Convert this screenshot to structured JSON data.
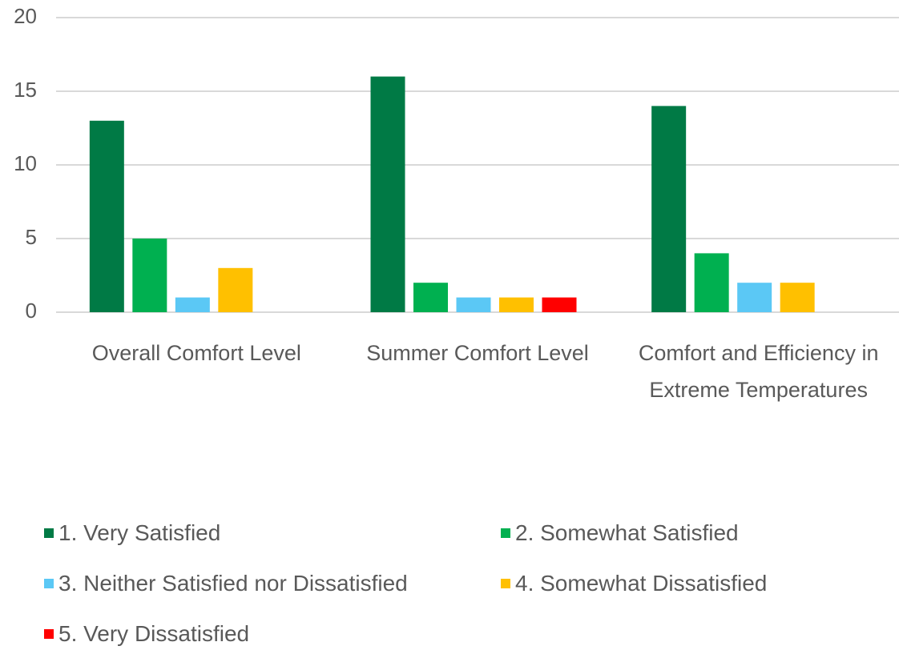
{
  "chart_data": {
    "type": "bar",
    "categories": [
      "Overall Comfort Level",
      "Summer Comfort Level",
      "Comfort and Efficiency in Extreme Temperatures"
    ],
    "series": [
      {
        "name": "1. Very Satisfied",
        "color": "#007a45",
        "values": [
          13,
          16,
          14
        ]
      },
      {
        "name": "2. Somewhat Satisfied",
        "color": "#00b050",
        "values": [
          5,
          2,
          4
        ]
      },
      {
        "name": "3. Neither Satisfied nor Dissatisfied",
        "color": "#5bc8f5",
        "values": [
          1,
          1,
          2
        ]
      },
      {
        "name": "4. Somewhat Dissatisfied",
        "color": "#ffc000",
        "values": [
          3,
          1,
          2
        ]
      },
      {
        "name": "5. Very Dissatisfied",
        "color": "#ff0000",
        "values": [
          0,
          1,
          0
        ]
      }
    ],
    "ylim": [
      0,
      20
    ],
    "yticks": [
      0,
      5,
      10,
      15,
      20
    ],
    "grid": true,
    "legend": "bottom"
  }
}
